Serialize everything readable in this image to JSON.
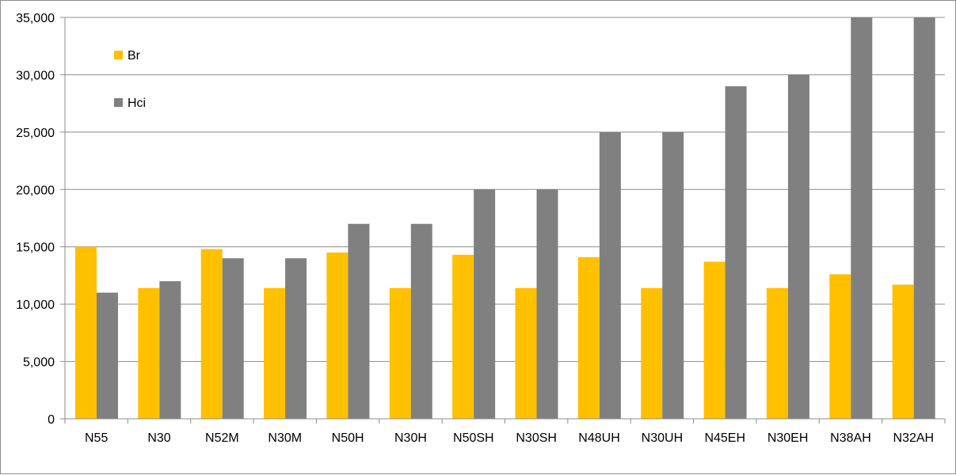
{
  "chart_data": {
    "type": "bar",
    "categories": [
      "N55",
      "N30",
      "N52M",
      "N30M",
      "N50H",
      "N30H",
      "N50SH",
      "N30SH",
      "N48UH",
      "N30UH",
      "N45EH",
      "N30EH",
      "N38AH",
      "N32AH"
    ],
    "series": [
      {
        "name": "Br",
        "color": "#ffc000",
        "values": [
          15000,
          11400,
          14800,
          11400,
          14500,
          11400,
          14300,
          11400,
          14100,
          11400,
          13700,
          11400,
          12600,
          11700
        ]
      },
      {
        "name": "Hci",
        "color": "#808080",
        "values": [
          11000,
          12000,
          14000,
          14000,
          17000,
          17000,
          20000,
          20000,
          25000,
          25000,
          29000,
          30000,
          35000,
          35000
        ]
      }
    ],
    "yticks": [
      "0",
      "5,000",
      "10,000",
      "15,000",
      "20,000",
      "25,000",
      "30,000",
      "35,000"
    ],
    "ylim": [
      0,
      35000
    ],
    "grid": true,
    "legend_position": "top-left"
  }
}
